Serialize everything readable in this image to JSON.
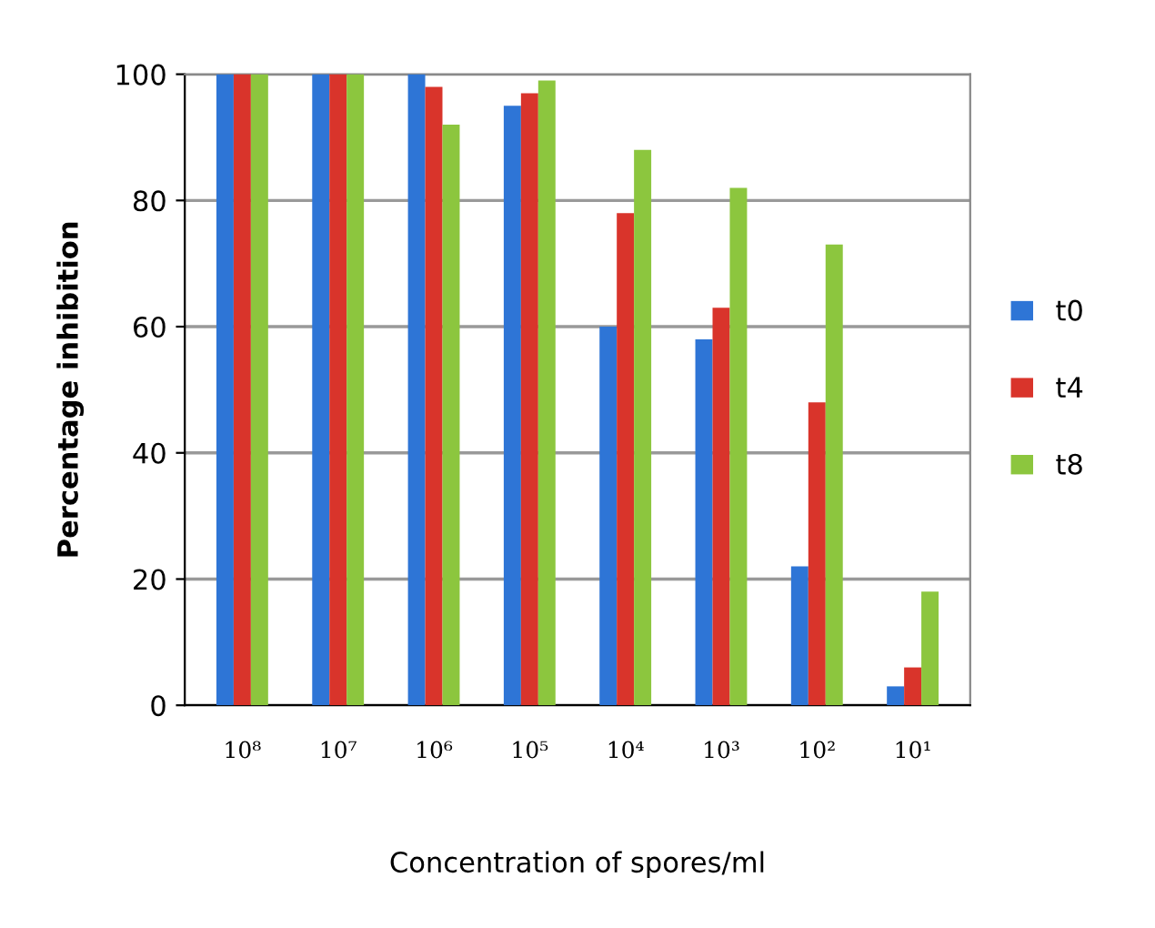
{
  "chart_data": {
    "type": "bar",
    "xlabel": "Concentration of spores/ml",
    "ylabel": "Percentage inhibition",
    "categories": [
      "10⁸",
      "10⁷",
      "10⁶",
      "10⁵",
      "10⁴",
      "10³",
      "10²",
      "10¹"
    ],
    "series": [
      {
        "name": "t0",
        "color": "#2e75d6",
        "values": [
          100,
          100,
          100,
          95,
          60,
          58,
          22,
          3
        ]
      },
      {
        "name": "t4",
        "color": "#d9342b",
        "values": [
          100,
          100,
          98,
          97,
          78,
          63,
          48,
          6
        ]
      },
      {
        "name": "t8",
        "color": "#8cc63e",
        "values": [
          100,
          100,
          92,
          99,
          88,
          82,
          73,
          18
        ]
      }
    ],
    "ylim": [
      0,
      100
    ],
    "yticks": [
      0,
      20,
      40,
      60,
      80,
      100
    ],
    "grid": "y",
    "legend": "right"
  }
}
